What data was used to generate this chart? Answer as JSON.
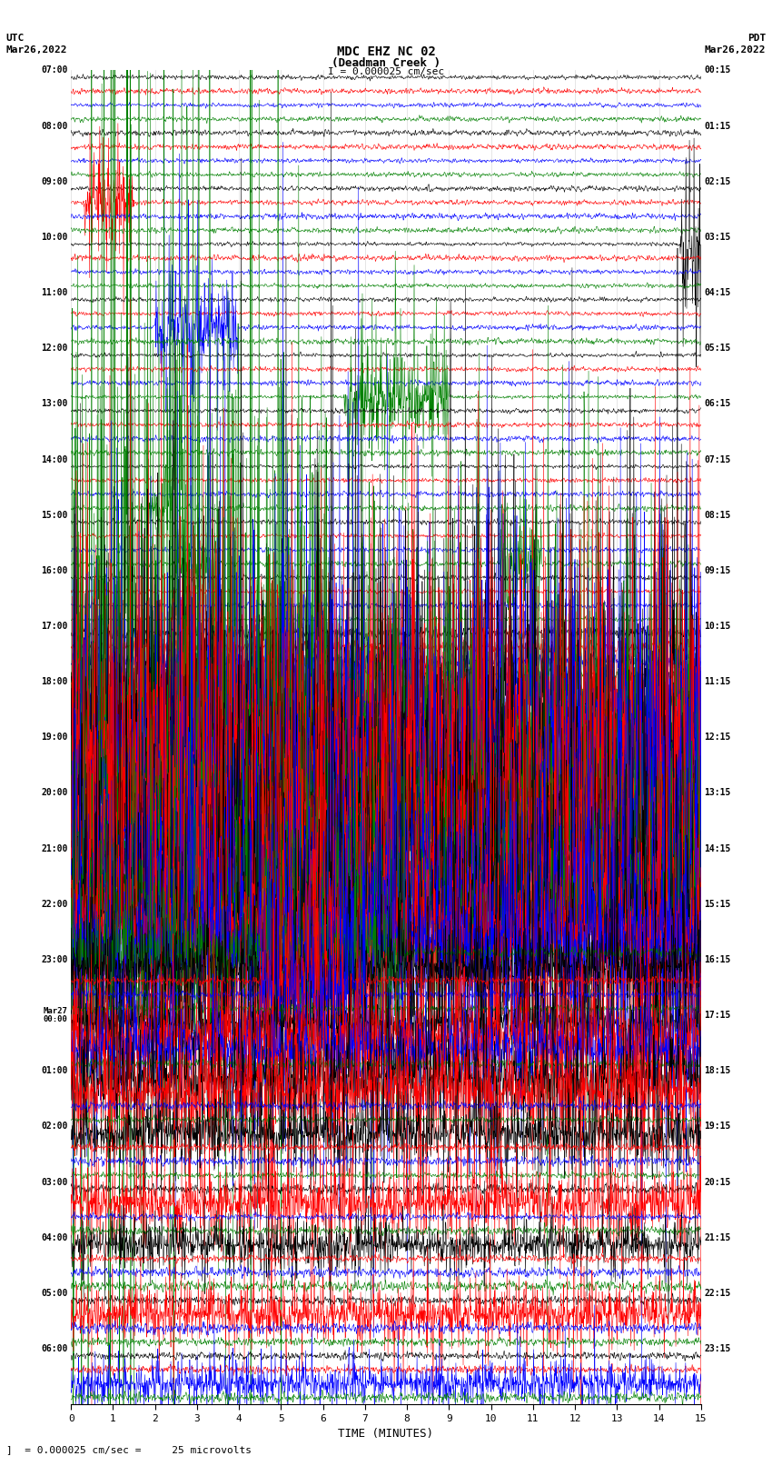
{
  "title_line1": "MDC EHZ NC 02",
  "title_line2": "(Deadman Creek )",
  "title_line3": "I = 0.000025 cm/sec",
  "left_header_line1": "UTC",
  "left_header_line2": "Mar26,2022",
  "right_header_line1": "PDT",
  "right_header_line2": "Mar26,2022",
  "xlabel": "TIME (MINUTES)",
  "footer": "= 0.000025 cm/sec =     25 microvolts",
  "colors": [
    "black",
    "red",
    "blue",
    "green"
  ],
  "n_hours": 24,
  "traces_per_hour": 4,
  "x_min": 0,
  "x_max": 15,
  "x_ticks": [
    0,
    1,
    2,
    3,
    4,
    5,
    6,
    7,
    8,
    9,
    10,
    11,
    12,
    13,
    14,
    15
  ],
  "utc_labels": [
    "07:00",
    "08:00",
    "09:00",
    "10:00",
    "11:00",
    "12:00",
    "13:00",
    "14:00",
    "15:00",
    "16:00",
    "17:00",
    "18:00",
    "19:00",
    "20:00",
    "21:00",
    "22:00",
    "23:00",
    "Mar27\n00:00",
    "01:00",
    "02:00",
    "03:00",
    "04:00",
    "05:00",
    "06:00"
  ],
  "pdt_labels": [
    "00:15",
    "01:15",
    "02:15",
    "03:15",
    "04:15",
    "05:15",
    "06:15",
    "07:15",
    "08:15",
    "09:15",
    "10:15",
    "11:15",
    "12:15",
    "13:15",
    "14:15",
    "15:15",
    "16:15",
    "17:15",
    "18:15",
    "19:15",
    "20:15",
    "21:15",
    "22:15",
    "23:15"
  ],
  "background_color": "#ffffff",
  "noise_seed": 42,
  "fig_width": 8.5,
  "fig_height": 16.13,
  "dpi": 100
}
